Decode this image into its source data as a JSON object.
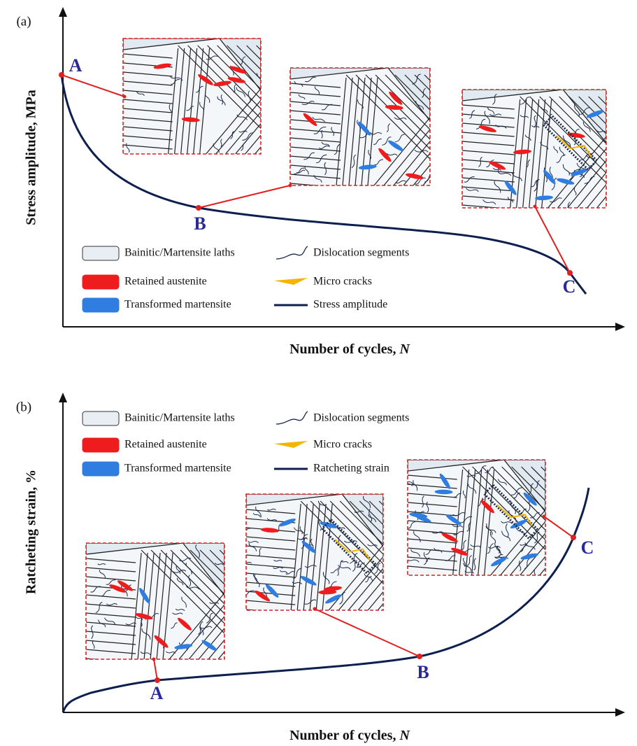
{
  "panels": [
    {
      "label": "(a)",
      "y_axis_label": "Stress amplitude, MPa",
      "x_axis_label": "Number of cycles,",
      "x_axis_variable": "N",
      "points": [
        "A",
        "B",
        "C"
      ],
      "legend": [
        "Bainitic/Martensite laths",
        "Retained austenite",
        "Transformed martensite",
        "Dislocation segments",
        "Micro cracks",
        "Stress amplitude"
      ]
    },
    {
      "label": "(b)",
      "y_axis_label": "Ratcheting strain, %",
      "x_axis_label": "Number of cycles,",
      "x_axis_variable": "N",
      "points": [
        "A",
        "B",
        "C"
      ],
      "legend": [
        "Bainitic/Martensite laths",
        "Retained austenite",
        "Transformed martensite",
        "Dislocation segments",
        "Micro cracks",
        "Ratcheting strain"
      ]
    }
  ]
}
